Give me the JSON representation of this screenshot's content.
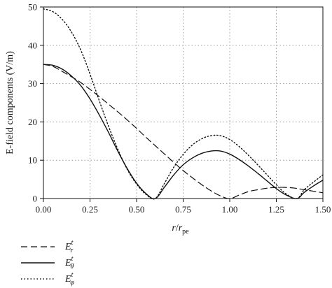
{
  "chart_data": {
    "type": "line",
    "xlabel_main": "r",
    "xlabel_sep": "/",
    "xlabel_denom": "r",
    "xlabel_sub": "pe",
    "ylabel": "E-field components (V/m)",
    "xlim": [
      0,
      1.5
    ],
    "ylim": [
      0,
      50
    ],
    "x_ticks": [
      "0.00",
      "0.25",
      "0.50",
      "0.75",
      "1.00",
      "1.25",
      "1.50"
    ],
    "y_ticks": [
      "0",
      "10",
      "20",
      "30",
      "40",
      "50"
    ],
    "grid": "dotted",
    "legend_position": "below-left",
    "series": [
      {
        "name": "E",
        "sup": "t",
        "sub": "r",
        "style": "dashed",
        "x": [
          0.0,
          0.05,
          0.1,
          0.15,
          0.2,
          0.25,
          0.3,
          0.35,
          0.4,
          0.45,
          0.5,
          0.55,
          0.6,
          0.65,
          0.7,
          0.75,
          0.8,
          0.85,
          0.9,
          0.95,
          1.0,
          1.05,
          1.1,
          1.15,
          1.2,
          1.25,
          1.3,
          1.35,
          1.4,
          1.45,
          1.5
        ],
        "y": [
          35.0,
          34.5,
          33.2,
          31.8,
          30.3,
          28.5,
          26.6,
          24.6,
          22.6,
          20.5,
          18.3,
          16.0,
          13.8,
          11.6,
          9.4,
          7.3,
          5.4,
          3.6,
          2.0,
          0.7,
          0.0,
          0.9,
          1.8,
          2.3,
          2.7,
          2.9,
          2.9,
          2.7,
          2.3,
          1.9,
          1.5
        ]
      },
      {
        "name": "E",
        "sup": "t",
        "sub": "θ",
        "style": "solid",
        "x": [
          0.0,
          0.05,
          0.1,
          0.15,
          0.2,
          0.25,
          0.3,
          0.35,
          0.4,
          0.45,
          0.5,
          0.55,
          0.6,
          0.65,
          0.7,
          0.75,
          0.8,
          0.85,
          0.9,
          0.95,
          1.0,
          1.05,
          1.1,
          1.15,
          1.2,
          1.25,
          1.3,
          1.36,
          1.4,
          1.45,
          1.5
        ],
        "y": [
          35.0,
          34.8,
          33.8,
          32.0,
          29.5,
          26.0,
          21.8,
          17.2,
          12.3,
          7.8,
          4.0,
          1.3,
          0.0,
          3.0,
          6.2,
          8.8,
          10.6,
          11.8,
          12.4,
          12.4,
          11.6,
          10.2,
          8.5,
          6.6,
          4.6,
          2.6,
          1.0,
          0.0,
          1.6,
          3.3,
          4.8
        ]
      },
      {
        "name": "E",
        "sup": "t",
        "sub": "φ",
        "style": "dotted",
        "x": [
          0.0,
          0.05,
          0.1,
          0.15,
          0.2,
          0.25,
          0.3,
          0.35,
          0.4,
          0.45,
          0.5,
          0.55,
          0.6,
          0.65,
          0.7,
          0.75,
          0.8,
          0.85,
          0.9,
          0.95,
          1.0,
          1.05,
          1.1,
          1.15,
          1.2,
          1.25,
          1.3,
          1.36,
          1.4,
          1.45,
          1.5
        ],
        "y": [
          49.5,
          48.8,
          46.8,
          43.5,
          38.8,
          32.5,
          25.5,
          18.8,
          12.8,
          7.6,
          3.8,
          1.1,
          0.0,
          4.0,
          8.2,
          11.5,
          14.0,
          15.6,
          16.4,
          16.4,
          15.4,
          13.6,
          11.3,
          8.8,
          6.2,
          3.6,
          1.3,
          0.0,
          2.3,
          4.3,
          6.2
        ]
      }
    ]
  }
}
